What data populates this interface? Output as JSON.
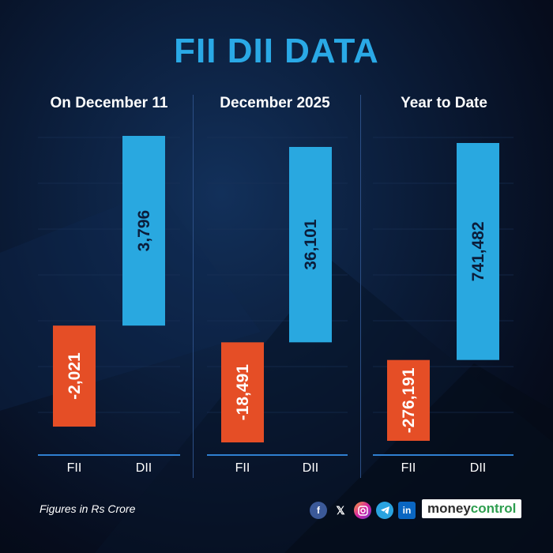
{
  "title": "FII DII DATA",
  "chart_data": [
    {
      "type": "bar",
      "title": "On December 11",
      "categories": [
        "FII",
        "DII"
      ],
      "values": [
        -2021,
        3796
      ],
      "labels": [
        "-2,021",
        "3,796"
      ],
      "colors": [
        "#e54e26",
        "#29a8e0"
      ]
    },
    {
      "type": "bar",
      "title": "December 2025",
      "categories": [
        "FII",
        "DII"
      ],
      "values": [
        -18491,
        36101
      ],
      "labels": [
        "-18,491",
        "36,101"
      ],
      "colors": [
        "#e54e26",
        "#29a8e0"
      ]
    },
    {
      "type": "bar",
      "title": "Year to Date",
      "categories": [
        "FII",
        "DII"
      ],
      "values": [
        -276191,
        741482
      ],
      "labels": [
        "-276,191",
        "741,482"
      ],
      "colors": [
        "#e54e26",
        "#29a8e0"
      ]
    }
  ],
  "footnote": "Figures in Rs Crore",
  "social_icons": [
    "facebook-icon",
    "x-icon",
    "instagram-icon",
    "telegram-icon",
    "linkedin-icon"
  ],
  "brand": {
    "part1": "money",
    "part2": "control"
  }
}
